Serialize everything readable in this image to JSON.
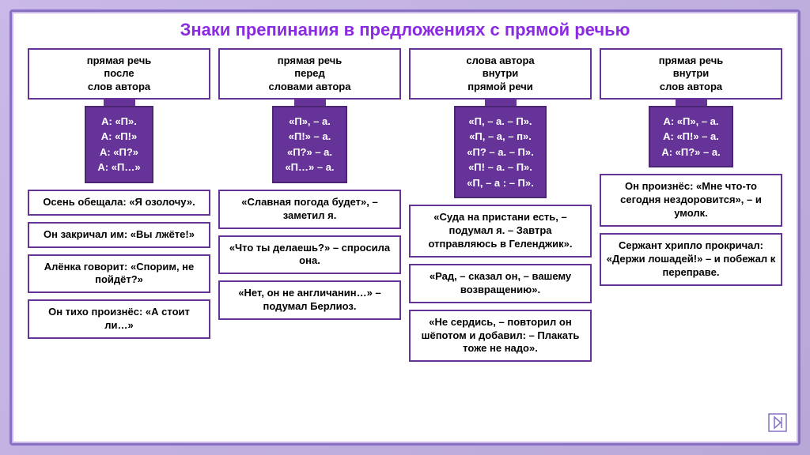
{
  "title": "Знаки препинания в предложениях с прямой речью",
  "columns": [
    {
      "header": "прямая речь\nпосле\nслов автора",
      "formulas": [
        "А: «П».",
        "А: «П!»",
        "А: «П?»",
        "А: «П…»"
      ],
      "examples": [
        "Осень обещала: «Я озолочу».",
        "Он закричал им: «Вы лжёте!»",
        "Алёнка говорит: «Спорим, не пойдёт?»",
        "Он тихо произнёс: «А стоит ли…»"
      ]
    },
    {
      "header": "прямая речь\nперед\nсловами автора",
      "formulas": [
        "«П»,  – а.",
        "«П!» – а.",
        "«П?» – а.",
        "«П…» – а."
      ],
      "examples": [
        "«Славная погода будет», – заметил я.",
        "«Что ты делаешь?» – спросила она.",
        "«Нет, он не англичанин…» – подумал Берлиоз."
      ]
    },
    {
      "header": "слова автора\nвнутри\nпрямой речи",
      "formulas": [
        "«П, – а. – П».",
        "«П, – а, – п».",
        "«П? – а. – П».",
        "«П! – а. – П».",
        "«П, – а : – П»."
      ],
      "examples": [
        "«Суда на пристани есть, – подумал я. – Завтра отправляюсь в Геленджик».",
        "«Рад, – сказал он, – вашему возвращению».",
        "«Не сердись, – повторил он шёпотом  и добавил: – Плакать тоже не надо»."
      ]
    },
    {
      "header": "прямая речь\nвнутри\nслов автора",
      "formulas": [
        "А: «П», – а.",
        "А: «П!» – а.",
        "А: «П?» – а."
      ],
      "examples": [
        "Он произнёс: «Мне что-то сегодня нездоровится», – и умолк.",
        "Сержант хрипло прокричал: «Держи лошадей!» – и побежал к переправе."
      ]
    }
  ],
  "colors": {
    "accent": "#663399",
    "title": "#8a2be2",
    "border": "#663399",
    "bg": "#ffffff"
  }
}
